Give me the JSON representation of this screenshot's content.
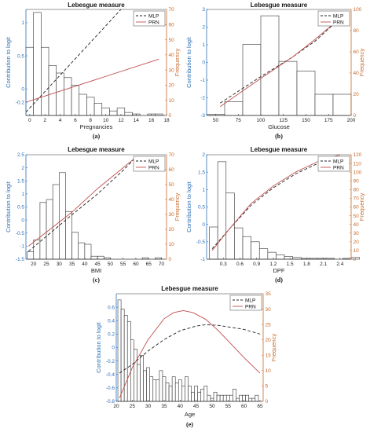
{
  "colors": {
    "left_axis": "#2a6fb5",
    "right_axis": "#c8692a",
    "mlp_line": "#222222",
    "prn_line": "#c0504d",
    "bar_stroke": "#333333"
  },
  "chart_data": [
    {
      "type": "bar",
      "title": "Lebesgue measure",
      "caption": "(a)",
      "xlabel": "Pregnancies",
      "ylabel_left": "Contribution to logit",
      "ylabel_right": "Frequency",
      "xlim": [
        -0.5,
        18
      ],
      "ylim_left": [
        -0.4,
        1.2
      ],
      "ylim_right": [
        0,
        70
      ],
      "xticks": [
        0,
        2,
        4,
        6,
        8,
        10,
        12,
        14,
        16,
        18
      ],
      "xtick_labels": [
        "0",
        "2",
        "4",
        "6",
        "8",
        "10",
        "12",
        "14",
        "16",
        "18"
      ],
      "yticks_left": [
        -0.2,
        0,
        0.5,
        1
      ],
      "ytick_labels_left": [
        "-0.2",
        "0",
        "0.5",
        "1"
      ],
      "yticks_right": [
        0,
        10,
        20,
        30,
        40,
        50,
        60,
        70
      ],
      "ytick_labels_right": [
        "0",
        "10",
        "20",
        "30",
        "40",
        "50",
        "60",
        "70"
      ],
      "bins": {
        "start": -0.5,
        "width": 1,
        "counts": [
          45,
          68,
          45,
          33,
          28,
          25,
          20,
          14,
          12,
          8,
          5,
          3,
          5,
          2,
          1,
          0,
          1,
          1
        ]
      },
      "series": [
        {
          "name": "MLP",
          "style": "dashed",
          "x": [
            -0.5,
            12
          ],
          "y": [
            -0.35,
            1.2
          ]
        },
        {
          "name": "PRN",
          "style": "solid",
          "x": [
            -0.5,
            17
          ],
          "y": [
            -0.2,
            0.45
          ]
        }
      ],
      "legend": "top-right"
    },
    {
      "type": "bar",
      "title": "Lebesgue measure",
      "caption": "(b)",
      "xlabel": "Glucose",
      "ylabel_left": "Contribution to logit",
      "ylabel_right": "Frequency",
      "xlim": [
        40,
        200
      ],
      "ylim_left": [
        -3,
        3
      ],
      "ylim_right": [
        0,
        100
      ],
      "xticks": [
        50,
        75,
        100,
        125,
        150,
        175,
        200
      ],
      "xtick_labels": [
        "50",
        "75",
        "100",
        "125",
        "150",
        "175",
        "200"
      ],
      "yticks_left": [
        -3,
        -2,
        -1,
        0,
        1,
        2,
        3
      ],
      "ytick_labels_left": [
        "-3",
        "-2",
        "-1",
        "0",
        "1",
        "2",
        "3"
      ],
      "yticks_right": [
        0,
        20,
        40,
        60,
        80,
        100
      ],
      "ytick_labels_right": [
        "0",
        "20",
        "40",
        "60",
        "80",
        "100"
      ],
      "bins": {
        "start": 40,
        "width": 20,
        "counts": [
          1,
          13,
          67,
          94,
          51,
          42,
          20,
          20
        ]
      },
      "series": [
        {
          "name": "MLP",
          "style": "dashed",
          "x": [
            55,
            100,
            135,
            160,
            190
          ],
          "y": [
            -2.3,
            -0.8,
            0.3,
            1.2,
            2.6
          ]
        },
        {
          "name": "PRN",
          "style": "solid",
          "x": [
            55,
            100,
            135,
            160,
            190
          ],
          "y": [
            -2.5,
            -0.9,
            0.3,
            1.3,
            2.6
          ]
        }
      ],
      "legend": "top-right"
    },
    {
      "type": "bar",
      "title": "Lebesgue measure",
      "caption": "(c)",
      "xlabel": "BMI",
      "ylabel_left": "Contribution to logit",
      "ylabel_right": "Frequency",
      "xlim": [
        17,
        72
      ],
      "ylim_left": [
        -1.5,
        2.5
      ],
      "ylim_right": [
        0,
        70
      ],
      "xticks": [
        20,
        25,
        30,
        35,
        40,
        45,
        50,
        55,
        60,
        65,
        70
      ],
      "xtick_labels": [
        "20",
        "25",
        "30",
        "35",
        "40",
        "45",
        "50",
        "55",
        "60",
        "65",
        "70"
      ],
      "yticks_left": [
        -1.5,
        -1,
        -0.5,
        0,
        0.5,
        1,
        1.5,
        2,
        2.5
      ],
      "ytick_labels_left": [
        "-1.5",
        "-1",
        "-0.5",
        "0",
        "0.5",
        "1",
        "1.5",
        "2",
        "2.5"
      ],
      "yticks_right": [
        0,
        10,
        20,
        30,
        40,
        50,
        60,
        70
      ],
      "ytick_labels_right": [
        "0",
        "10",
        "20",
        "30",
        "40",
        "50",
        "60",
        "70"
      ],
      "bins": {
        "start": 17.5,
        "width": 2.5,
        "counts": [
          5,
          13,
          38,
          40,
          50,
          58,
          32,
          18,
          11,
          10,
          2,
          2,
          1,
          0,
          0,
          0,
          0,
          0,
          1,
          0,
          1
        ]
      },
      "series": [
        {
          "name": "MLP",
          "style": "dashed",
          "x": [
            18,
            35,
            45,
            55,
            60
          ],
          "y": [
            -1.2,
            0.2,
            1.0,
            1.9,
            2.4
          ]
        },
        {
          "name": "PRN",
          "style": "solid",
          "x": [
            18,
            35,
            45,
            55,
            60
          ],
          "y": [
            -1.0,
            0.3,
            1.2,
            2.0,
            2.4
          ]
        }
      ],
      "legend": "top-right"
    },
    {
      "type": "bar",
      "title": "Lebesgue measure",
      "caption": "(d)",
      "xlabel": "DPF",
      "ylabel_left": "Contribution to logit",
      "ylabel_right": "Frequency",
      "xlim": [
        0,
        2.6
      ],
      "ylim_left": [
        -1,
        2
      ],
      "ylim_right": [
        0,
        120
      ],
      "xticks": [
        0.3,
        0.6,
        0.9,
        1.2,
        1.5,
        1.8,
        2.1,
        2.4
      ],
      "xtick_labels": [
        "0.3",
        "0.6",
        "0.9",
        "1.2",
        "1.5",
        "1.8",
        "2.1",
        "2.4"
      ],
      "yticks_left": [
        -1,
        -0.5,
        0,
        0.5,
        1,
        1.5,
        2
      ],
      "ytick_labels_left": [
        "-1",
        "-0.5",
        "0",
        "0.5",
        "1",
        "1.5",
        "2"
      ],
      "yticks_right": [
        0,
        10,
        20,
        30,
        40,
        50,
        60,
        70,
        80,
        90,
        100,
        110,
        120
      ],
      "ytick_labels_right": [
        "0",
        "10",
        "20",
        "30",
        "40",
        "50",
        "60",
        "70",
        "80",
        "90",
        "100",
        "110",
        "120"
      ],
      "bins": {
        "start": 0.05,
        "width": 0.15,
        "counts": [
          37,
          112,
          76,
          36,
          26,
          20,
          12,
          8,
          5,
          3,
          2,
          1,
          1,
          1,
          1,
          0,
          1,
          2
        ]
      },
      "series": [
        {
          "name": "MLP",
          "style": "dashed",
          "x": [
            0.1,
            0.4,
            0.8,
            1.2,
            1.6,
            2.0,
            2.4
          ],
          "y": [
            -0.7,
            -0.15,
            0.55,
            1.05,
            1.45,
            1.75,
            1.95
          ]
        },
        {
          "name": "PRN",
          "style": "solid",
          "x": [
            0.1,
            0.4,
            0.8,
            1.2,
            1.6,
            2.0,
            2.4
          ],
          "y": [
            -0.75,
            -0.15,
            0.6,
            1.1,
            1.5,
            1.8,
            2.0
          ]
        }
      ],
      "legend": "top-right"
    },
    {
      "type": "bar",
      "title": "Lebesgue measure",
      "caption": "(e)",
      "xlabel": "Age",
      "ylabel_left": "Contribution to logit",
      "ylabel_right": "Frequency",
      "xlim": [
        20,
        66
      ],
      "ylim_left": [
        -0.8,
        0.8
      ],
      "ylim_right": [
        0,
        35
      ],
      "xticks": [
        20,
        25,
        30,
        35,
        40,
        45,
        50,
        55,
        60,
        65
      ],
      "xtick_labels": [
        "20",
        "25",
        "30",
        "35",
        "40",
        "45",
        "50",
        "55",
        "60",
        "65"
      ],
      "yticks_left": [
        -0.8,
        -0.6,
        -0.4,
        -0.2,
        0,
        0.2,
        0.4,
        0.6
      ],
      "ytick_labels_left": [
        "-0.8",
        "-0.6",
        "-0.4",
        "-0.2",
        "0",
        "0.2",
        "0.4",
        "0.6"
      ],
      "yticks_right": [
        0,
        5,
        10,
        15,
        20,
        25,
        30,
        35
      ],
      "ytick_labels_right": [
        "0",
        "5",
        "10",
        "15",
        "20",
        "25",
        "30",
        "35"
      ],
      "bins": {
        "start": 20.5,
        "width": 1,
        "counts": [
          33,
          30,
          28,
          26,
          20,
          17,
          12,
          15,
          10,
          11,
          8,
          7,
          7,
          10,
          8,
          6,
          5,
          8,
          6,
          7,
          5,
          8,
          5,
          3,
          5,
          3,
          4,
          5,
          2,
          1,
          3,
          2,
          2,
          2,
          2,
          2,
          4,
          1,
          2,
          2,
          2,
          1,
          1,
          2
        ]
      },
      "series": [
        {
          "name": "MLP",
          "style": "dashed",
          "x": [
            21,
            25,
            30,
            35,
            40,
            45,
            48,
            52,
            56,
            60,
            65
          ],
          "y": [
            -0.38,
            -0.25,
            -0.05,
            0.12,
            0.25,
            0.32,
            0.34,
            0.33,
            0.3,
            0.27,
            0.2
          ]
        },
        {
          "name": "PRN",
          "style": "solid",
          "x": [
            21,
            25,
            30,
            35,
            38,
            41,
            44,
            48,
            52,
            56,
            60,
            65
          ],
          "y": [
            -0.75,
            -0.3,
            0.12,
            0.43,
            0.52,
            0.55,
            0.52,
            0.42,
            0.25,
            0.05,
            -0.15,
            -0.38
          ]
        }
      ],
      "legend": "top-right"
    }
  ]
}
